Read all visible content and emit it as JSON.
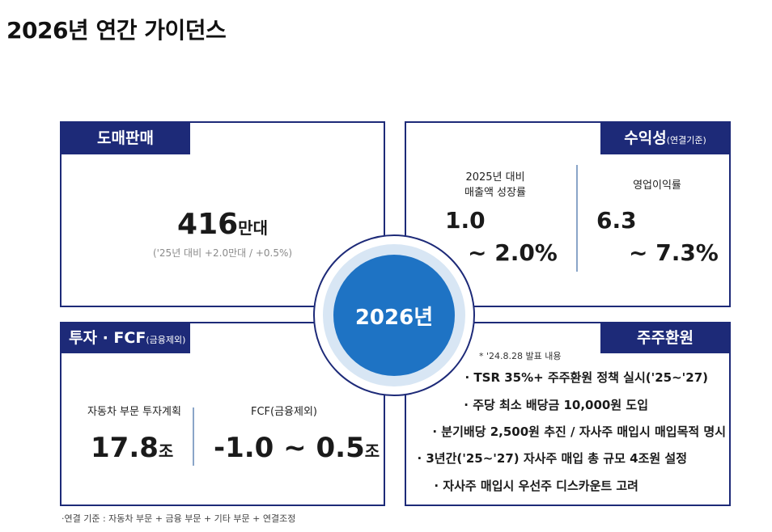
{
  "title": "2026년 연간 가이던스",
  "center": {
    "label": "2026년"
  },
  "sales": {
    "tag": "도매판매",
    "value": "416",
    "unit": "만대",
    "note": "('25년 대비 +2.0만대 / +0.5%)"
  },
  "profit": {
    "tag": "수익성",
    "tag_sub": "(연결기준)",
    "growth_label_line1": "2025년 대비",
    "growth_label_line2": "매출액 성장률",
    "growth_low": "1.0",
    "growth_high": "~ 2.0%",
    "margin_label": "영업이익률",
    "margin_low": "6.3",
    "margin_high": "~ 7.3%"
  },
  "invest": {
    "tag": "투자 · FCF",
    "tag_sub": "(금융제외)",
    "plan_label": "자동차 부문 투자계획",
    "plan_value": "17.8",
    "plan_unit": "조",
    "fcf_label": "FCF(금융제외)",
    "fcf_value": "-1.0 ~ 0.5",
    "fcf_unit": "조"
  },
  "shareholder": {
    "tag": "주주환원",
    "footnote": "* '24.8.28 발표 내용",
    "items": [
      "· TSR 35%+ 주주환원 정책 실시('25~'27)",
      "· 주당 최소 배당금 10,000원 도입",
      "· 분기배당 2,500원 추진 / 자사주 매입시 매입목적 명시",
      "· 3년간('25~'27) 자사주 매입 총 규모 4조원 설정",
      "· 자사주 매입시 우선주 디스카운트 고려"
    ]
  },
  "footer": "·연결 기준 : 자동차 부문 + 금융 부문 + 기타 부문 + 연결조정",
  "colors": {
    "navy": "#1d2a78",
    "blue": "#1e73c4",
    "halo": "#d8e6f4",
    "divider": "#8aa5c8"
  }
}
